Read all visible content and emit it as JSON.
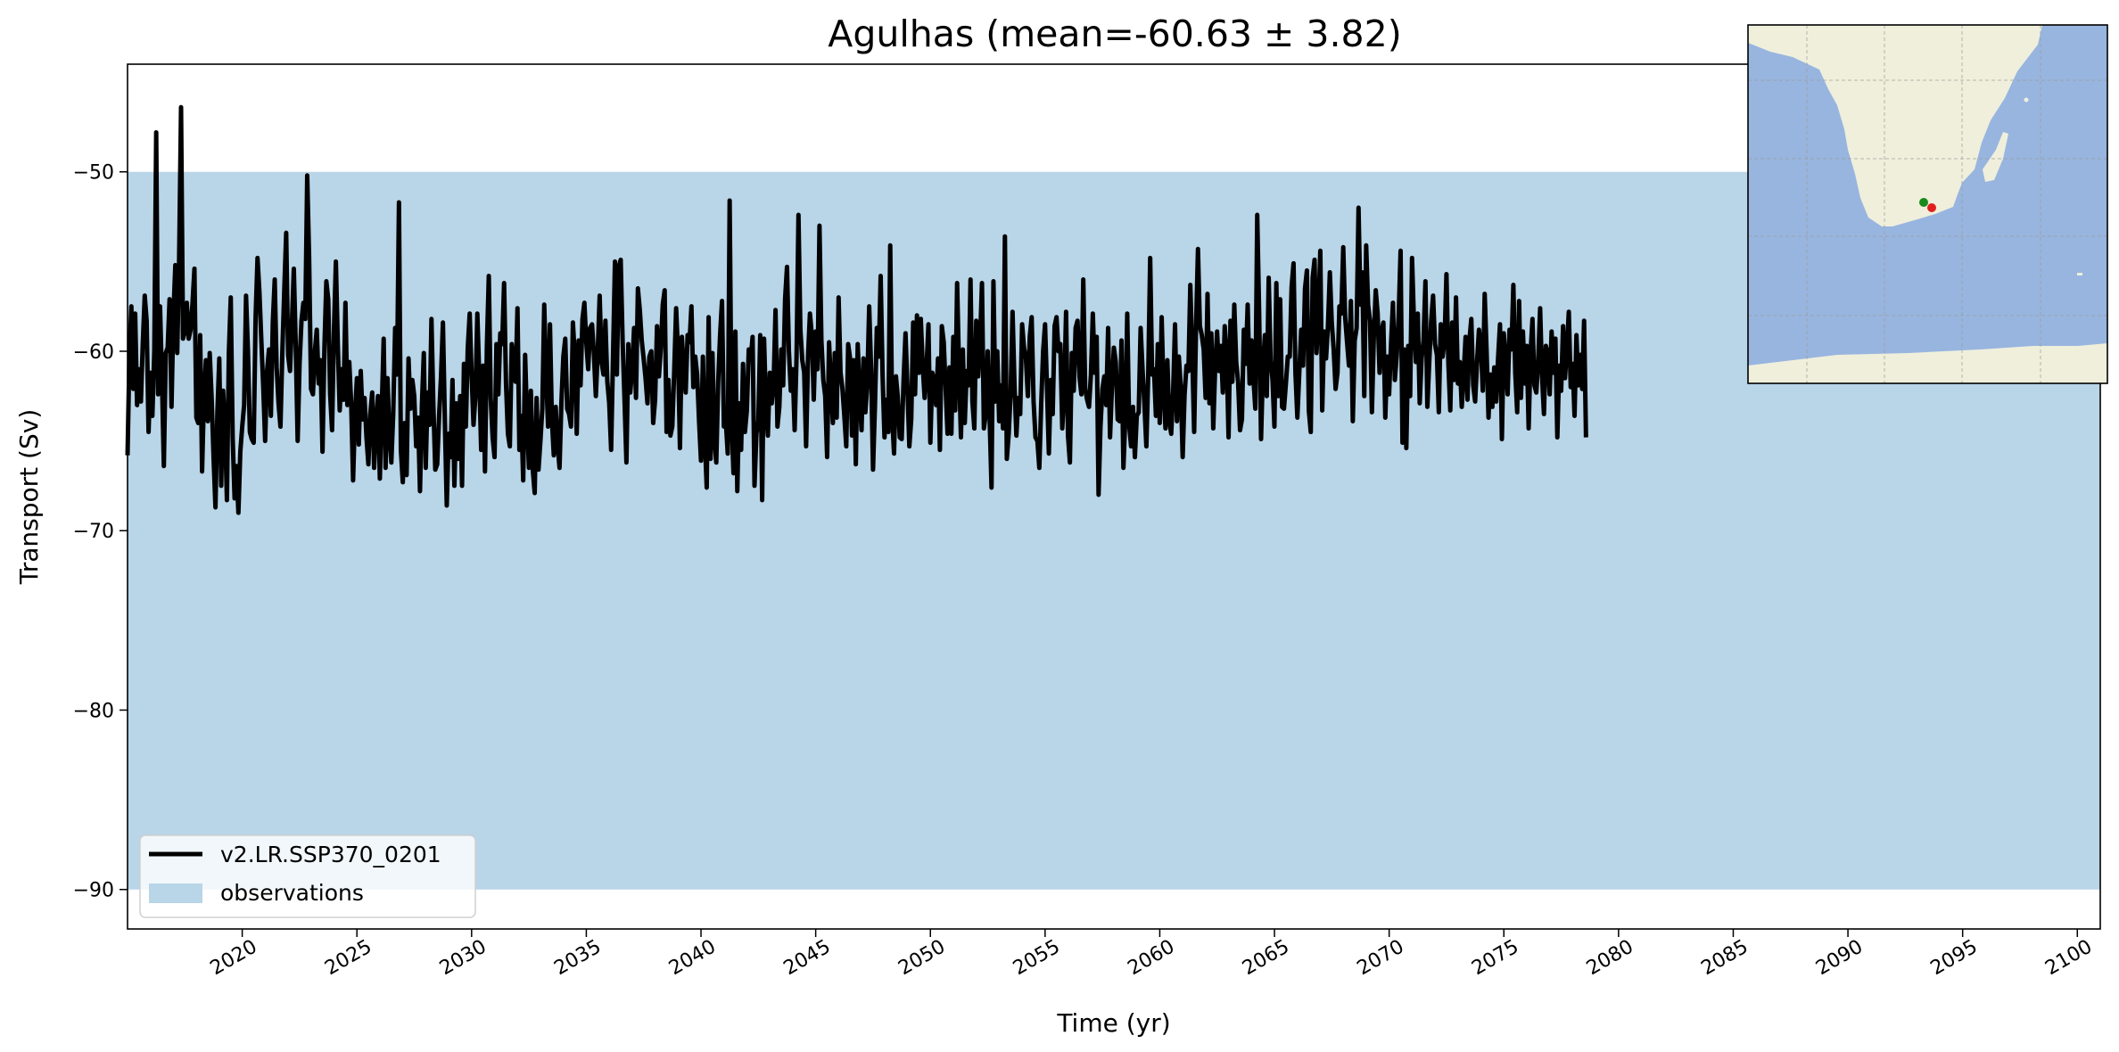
{
  "chart_data": {
    "type": "line",
    "title": "Agulhas (mean=-60.63 ± 3.82)",
    "xlabel": "Time (yr)",
    "ylabel": "Transport (Sv)",
    "xlim": [
      2015.0,
      2101.0
    ],
    "ylim": [
      -92.2,
      -44.0
    ],
    "x_ticks": [
      2020,
      2025,
      2030,
      2035,
      2040,
      2045,
      2050,
      2055,
      2060,
      2065,
      2070,
      2075,
      2080,
      2085,
      2090,
      2095,
      2100
    ],
    "x_tick_labels": [
      "2020",
      "2025",
      "2030",
      "2035",
      "2040",
      "2045",
      "2050",
      "2055",
      "2060",
      "2065",
      "2070",
      "2075",
      "2080",
      "2085",
      "2090",
      "2095",
      "2100"
    ],
    "y_ticks": [
      -50,
      -60,
      -70,
      -80,
      -90
    ],
    "y_tick_labels": [
      "−50",
      "−60",
      "−70",
      "−80",
      "−90"
    ],
    "grid": false,
    "legend_placement": "lower-left",
    "observations_band": {
      "name": "observations",
      "ymin": -90,
      "ymax": -50,
      "color": "#b9d5e8"
    },
    "series": [
      {
        "name": "v2.LR.SSP370_0201",
        "color": "#000000",
        "x_start": 2015.0,
        "x_step": 0.08333,
        "values": [
          -65.8,
          -60.2,
          -57.5,
          -62.1,
          -57.9,
          -63.0,
          -61.0,
          -62.8,
          -59.5,
          -56.9,
          -58.3,
          -64.5,
          -61.2,
          -63.6,
          -60.0,
          -47.8,
          -62.4,
          -57.5,
          -61.5,
          -66.4,
          -60.1,
          -59.8,
          -57.1,
          -63.1,
          -58.0,
          -55.2,
          -60.1,
          -54.8,
          -46.4,
          -59.3,
          -58.9,
          -57.3,
          -59.3,
          -58.8,
          -57.3,
          -55.4,
          -63.7,
          -64.0,
          -59.1,
          -66.7,
          -62.4,
          -60.5,
          -63.9,
          -60.1,
          -62.6,
          -65.9,
          -68.7,
          -63.4,
          -60.4,
          -67.5,
          -62.2,
          -64.3,
          -68.3,
          -60.1,
          -57.0,
          -64.8,
          -68.2,
          -66.4,
          -69.0,
          -65.6,
          -64.2,
          -63.0,
          -56.9,
          -60.0,
          -64.5,
          -64.9,
          -65.1,
          -58.1,
          -54.8,
          -56.7,
          -59.4,
          -62.0,
          -65.0,
          -61.1,
          -59.9,
          -63.6,
          -58.4,
          -56.0,
          -60.9,
          -62.9,
          -64.2,
          -60.0,
          -56.6,
          -53.4,
          -60.2,
          -61.1,
          -58.4,
          -55.4,
          -59.7,
          -65.0,
          -60.7,
          -58.3,
          -57.3,
          -58.2,
          -50.2,
          -54.8,
          -62.1,
          -62.4,
          -60.0,
          -58.8,
          -61.8,
          -60.5,
          -65.6,
          -59.8,
          -56.1,
          -57.1,
          -62.4,
          -64.4,
          -58.8,
          -55.0,
          -59.6,
          -63.3,
          -61.0,
          -62.7,
          -57.3,
          -63.0,
          -60.6,
          -62.9,
          -67.2,
          -63.5,
          -61.5,
          -65.2,
          -61.1,
          -63.8,
          -62.6,
          -64.8,
          -66.3,
          -63.5,
          -62.3,
          -66.5,
          -64.0,
          -62.5,
          -67.1,
          -63.2,
          -59.3,
          -66.5,
          -61.5,
          -64.6,
          -66.2,
          -63.5,
          -58.7,
          -61.3,
          -51.7,
          -65.5,
          -67.3,
          -64.0,
          -66.9,
          -60.4,
          -63.2,
          -61.6,
          -62.5,
          -65.3,
          -63.7,
          -67.8,
          -63.0,
          -60.1,
          -66.5,
          -62.3,
          -64.1,
          -58.2,
          -63.0,
          -66.6,
          -66.3,
          -63.6,
          -61.4,
          -58.4,
          -63.8,
          -68.6,
          -64.6,
          -65.9,
          -61.6,
          -67.5,
          -62.9,
          -66.0,
          -62.5,
          -67.5,
          -60.7,
          -64.2,
          -59.8,
          -57.9,
          -61.3,
          -64.1,
          -62.5,
          -57.9,
          -61.4,
          -65.5,
          -60.8,
          -66.7,
          -59.7,
          -55.8,
          -62.6,
          -64.8,
          -65.9,
          -59.6,
          -62.4,
          -59.0,
          -59.6,
          -56.2,
          -61.8,
          -64.6,
          -65.3,
          -59.6,
          -60.8,
          -61.7,
          -57.6,
          -65.5,
          -63.6,
          -67.2,
          -60.2,
          -63.8,
          -66.5,
          -62.2,
          -66.6,
          -67.9,
          -62.6,
          -66.6,
          -65.0,
          -63.2,
          -57.4,
          -61.3,
          -64.2,
          -58.5,
          -63.8,
          -65.8,
          -63.1,
          -65.2,
          -66.5,
          -62.8,
          -60.3,
          -59.3,
          -63.2,
          -63.5,
          -64.2,
          -58.4,
          -60.3,
          -64.6,
          -59.4,
          -61.9,
          -58.2,
          -57.3,
          -59.5,
          -61.0,
          -58.7,
          -58.5,
          -60.2,
          -62.5,
          -60.0,
          -56.9,
          -60.6,
          -61.3,
          -58.3,
          -61.7,
          -62.9,
          -65.5,
          -60.2,
          -55.0,
          -61.3,
          -55.3,
          -54.9,
          -59.4,
          -62.7,
          -66.2,
          -59.6,
          -62.3,
          -61.0,
          -58.7,
          -62.6,
          -56.5,
          -57.7,
          -59.4,
          -60.4,
          -61.5,
          -62.9,
          -60.3,
          -60.0,
          -64.0,
          -62.7,
          -58.6,
          -61.4,
          -59.8,
          -57.4,
          -56.6,
          -64.5,
          -61.6,
          -64.7,
          -64.2,
          -61.1,
          -57.6,
          -60.1,
          -65.4,
          -59.2,
          -61.0,
          -62.3,
          -59.1,
          -59.5,
          -57.5,
          -62.0,
          -60.3,
          -61.3,
          -63.9,
          -66.1,
          -60.3,
          -64.9,
          -67.6,
          -58.1,
          -66.0,
          -60.1,
          -64.9,
          -66.2,
          -61.7,
          -59.1,
          -57.2,
          -64.2,
          -63.9,
          -65.7,
          -51.6,
          -63.8,
          -66.8,
          -58.9,
          -67.8,
          -62.9,
          -65.5,
          -60.7,
          -64.5,
          -63.3,
          -59.9,
          -60.5,
          -59.2,
          -67.5,
          -64.6,
          -63.9,
          -59.1,
          -68.3,
          -59.3,
          -63.1,
          -64.7,
          -61.2,
          -62.9,
          -61.8,
          -57.7,
          -64.2,
          -63.1,
          -59.9,
          -61.9,
          -57.1,
          -55.3,
          -60.0,
          -62.2,
          -61.0,
          -64.4,
          -60.3,
          -52.4,
          -58.8,
          -60.5,
          -61.2,
          -65.3,
          -60.3,
          -57.9,
          -59.1,
          -62.7,
          -58.9,
          -61.0,
          -53.0,
          -59.4,
          -61.6,
          -62.5,
          -65.9,
          -59.5,
          -61.8,
          -64.0,
          -60.1,
          -63.7,
          -57.0,
          -61.2,
          -62.1,
          -63.6,
          -65.3,
          -59.6,
          -60.4,
          -64.7,
          -60.5,
          -66.3,
          -59.6,
          -62.6,
          -64.4,
          -60.4,
          -63.4,
          -61.8,
          -57.5,
          -61.0,
          -66.6,
          -63.1,
          -58.7,
          -60.3,
          -55.8,
          -61.3,
          -64.8,
          -62.7,
          -64.5,
          -54.1,
          -63.6,
          -65.7,
          -61.4,
          -62.6,
          -64.8,
          -64.9,
          -61.6,
          -59.0,
          -62.0,
          -65.3,
          -63.8,
          -58.4,
          -62.4,
          -58.0,
          -61.2,
          -58.2,
          -60.8,
          -62.6,
          -60.9,
          -58.5,
          -65.1,
          -61.2,
          -61.6,
          -63.0,
          -60.4,
          -65.5,
          -58.6,
          -59.5,
          -62.1,
          -64.6,
          -60.9,
          -64.6,
          -59.2,
          -63.3,
          -56.2,
          -61.0,
          -64.8,
          -59.9,
          -64.0,
          -61.1,
          -61.9,
          -56.0,
          -62.8,
          -64.3,
          -58.3,
          -61.4,
          -59.5,
          -56.2,
          -64.3,
          -63.5,
          -60.0,
          -63.7,
          -67.6,
          -56.1,
          -62.8,
          -60.0,
          -63.9,
          -61.9,
          -64.3,
          -53.6,
          -66.0,
          -64.6,
          -62.3,
          -57.8,
          -61.8,
          -64.7,
          -62.6,
          -63.5,
          -58.5,
          -59.8,
          -60.4,
          -62.5,
          -59.2,
          -58.1,
          -62.8,
          -64.8,
          -65.0,
          -66.5,
          -62.9,
          -60.0,
          -58.5,
          -62.0,
          -65.7,
          -61.6,
          -63.5,
          -58.6,
          -58.1,
          -60.0,
          -59.6,
          -64.3,
          -62.4,
          -57.8,
          -64.7,
          -66.2,
          -60.1,
          -62.2,
          -58.7,
          -58.3,
          -61.4,
          -62.4,
          -56.0,
          -62.1,
          -62.7,
          -63.1,
          -61.3,
          -57.9,
          -61.2,
          -59.2,
          -68.0,
          -64.2,
          -62.1,
          -61.4,
          -63.0,
          -58.7,
          -64.8,
          -62.0,
          -59.8,
          -60.6,
          -63.8,
          -63.9,
          -59.4,
          -66.5,
          -63.7,
          -57.9,
          -64.1,
          -65.3,
          -63.1,
          -65.9,
          -63.6,
          -63.4,
          -58.7,
          -61.0,
          -63.0,
          -65.3,
          -61.2,
          -54.8,
          -61.3,
          -61.0,
          -63.6,
          -59.6,
          -64.0,
          -58.1,
          -62.2,
          -64.3,
          -60.5,
          -63.9,
          -64.6,
          -62.3,
          -58.5,
          -63.9,
          -60.3,
          -62.0,
          -65.9,
          -62.4,
          -60.8,
          -61.1,
          -56.3,
          -60.1,
          -64.5,
          -58.6,
          -54.3,
          -58.6,
          -59.1,
          -59.9,
          -62.6,
          -56.8,
          -62.9,
          -59.0,
          -64.3,
          -60.9,
          -58.9,
          -61.1,
          -59.7,
          -62.3,
          -58.6,
          -60.2,
          -64.8,
          -58.3,
          -61.7,
          -57.4,
          -60.6,
          -61.7,
          -64.4,
          -63.8,
          -58.8,
          -60.7,
          -57.4,
          -61.8,
          -59.4,
          -61.5,
          -63.2,
          -52.4,
          -57.8,
          -64.9,
          -60.9,
          -59.1,
          -62.5,
          -55.9,
          -60.5,
          -61.6,
          -64.2,
          -56.2,
          -62.5,
          -57.1,
          -63.1,
          -63.2,
          -61.8,
          -60.3,
          -60.3,
          -56.4,
          -55.1,
          -61.2,
          -63.7,
          -61.2,
          -58.8,
          -60.8,
          -56.5,
          -55.5,
          -63.3,
          -64.5,
          -55.9,
          -54.9,
          -60.1,
          -58.0,
          -54.4,
          -63.3,
          -58.9,
          -60.4,
          -58.6,
          -55.6,
          -58.4,
          -59.9,
          -62.1,
          -61.2,
          -57.5,
          -57.9,
          -54.2,
          -58.1,
          -59.5,
          -60.8,
          -57.2,
          -63.9,
          -59.4,
          -58.7,
          -52.0,
          -57.4,
          -55.6,
          -62.5,
          -54.1,
          -57.4,
          -58.3,
          -63.4,
          -59.2,
          -56.6,
          -57.9,
          -61.2,
          -58.9,
          -58.4,
          -63.7,
          -60.3,
          -62.4,
          -59.6,
          -57.3,
          -61.6,
          -60.2,
          -58.0,
          -54.4,
          -65.1,
          -59.9,
          -65.4,
          -59.7,
          -62.5,
          -54.8,
          -58.4,
          -60.6,
          -57.9,
          -62.9,
          -60.4,
          -59.4,
          -56.1,
          -63.1,
          -60.6,
          -58.3,
          -56.9,
          -59.6,
          -60.2,
          -63.4,
          -58.5,
          -60.3,
          -59.4,
          -55.7,
          -60.7,
          -63.3,
          -58.4,
          -61.6,
          -57.0,
          -61.8,
          -60.6,
          -63.1,
          -61.3,
          -59.2,
          -62.7,
          -59.4,
          -58.2,
          -61.9,
          -62.8,
          -60.6,
          -58.8,
          -59.6,
          -62.2,
          -56.8,
          -60.0,
          -63.7,
          -61.3,
          -63.1,
          -60.9,
          -62.8,
          -60.4,
          -58.5,
          -64.9,
          -59.0,
          -60.5,
          -62.4,
          -58.8,
          -59.9,
          -56.3,
          -61.2,
          -63.4,
          -57.2,
          -62.6,
          -58.9,
          -61.8,
          -59.7,
          -64.3,
          -60.1,
          -58.2,
          -61.9,
          -62.3,
          -60.5,
          -57.6,
          -61.4,
          -63.5,
          -59.7,
          -60.1,
          -62.4,
          -58.9,
          -61.2,
          -59.3,
          -64.8,
          -60.8,
          -62.2,
          -58.6,
          -61.5,
          -59.9,
          -57.8,
          -62.0,
          -60.7,
          -63.6,
          -59.1,
          -61.9,
          -60.2,
          -62.1,
          -58.3,
          -64.8
        ]
      }
    ],
    "legend": [
      {
        "label": "v2.LR.SSP370_0201",
        "kind": "line",
        "color": "#000000"
      },
      {
        "label": "observations",
        "kind": "patch",
        "color": "#b9d5e8"
      }
    ],
    "inset_map": {
      "ocean_color": "#98b5df",
      "land_color": "#efefdc",
      "markers": [
        {
          "color": "#1a8a1a"
        },
        {
          "color": "#e02020"
        }
      ]
    }
  }
}
